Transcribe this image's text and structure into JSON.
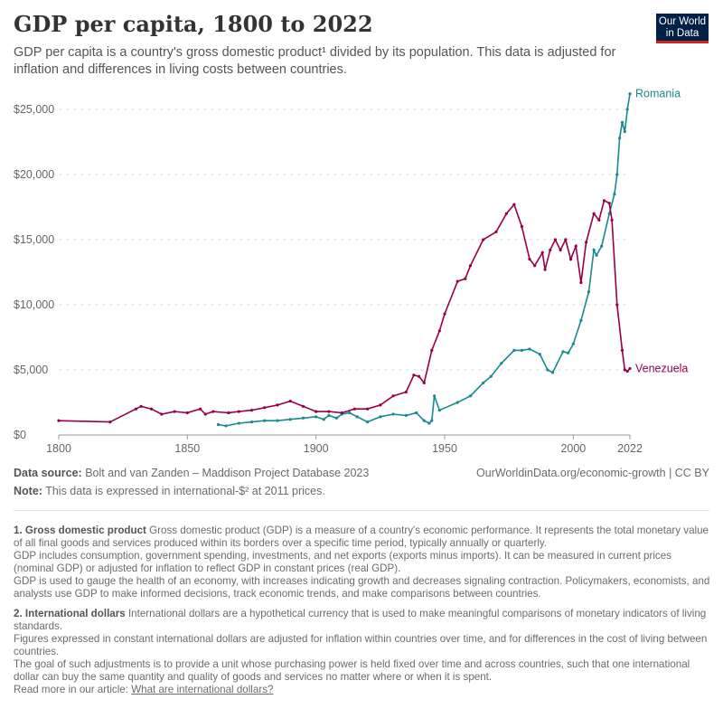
{
  "header": {
    "title": "GDP per capita, 1800 to 2022",
    "subtitle": "GDP per capita is a country's gross domestic product¹ divided by its population. This data is adjusted for inflation and differences in living costs between countries.",
    "logo": "Our World in Data"
  },
  "chart_data": {
    "type": "line",
    "title": "GDP per capita, 1800 to 2022",
    "xlabel": "",
    "ylabel": "",
    "xlim": [
      1800,
      2022
    ],
    "ylim": [
      0,
      25000
    ],
    "xticks": [
      "1800",
      "1850",
      "1900",
      "1950",
      "2000",
      "2022"
    ],
    "yticks": [
      "$0",
      "$5,000",
      "$10,000",
      "$15,000",
      "$20,000",
      "$25,000"
    ],
    "legend": "inline-right",
    "grid": "horizontal-dashed",
    "series": [
      {
        "name": "Romania",
        "color": "#18898f",
        "points": [
          [
            1862,
            800
          ],
          [
            1865,
            700
          ],
          [
            1870,
            900
          ],
          [
            1875,
            1000
          ],
          [
            1880,
            1100
          ],
          [
            1885,
            1100
          ],
          [
            1890,
            1200
          ],
          [
            1895,
            1300
          ],
          [
            1900,
            1400
          ],
          [
            1903,
            1200
          ],
          [
            1905,
            1500
          ],
          [
            1908,
            1300
          ],
          [
            1910,
            1600
          ],
          [
            1913,
            1700
          ],
          [
            1916,
            1400
          ],
          [
            1920,
            1000
          ],
          [
            1925,
            1400
          ],
          [
            1930,
            1600
          ],
          [
            1935,
            1500
          ],
          [
            1939,
            1700
          ],
          [
            1942,
            1100
          ],
          [
            1944,
            900
          ],
          [
            1945,
            1100
          ],
          [
            1946,
            3000
          ],
          [
            1948,
            1900
          ],
          [
            1955,
            2500
          ],
          [
            1960,
            3000
          ],
          [
            1965,
            4000
          ],
          [
            1968,
            4500
          ],
          [
            1972,
            5500
          ],
          [
            1977,
            6500
          ],
          [
            1980,
            6500
          ],
          [
            1983,
            6600
          ],
          [
            1987,
            6200
          ],
          [
            1990,
            5000
          ],
          [
            1992,
            4800
          ],
          [
            1996,
            6400
          ],
          [
            1998,
            6300
          ],
          [
            2000,
            7000
          ],
          [
            2003,
            8800
          ],
          [
            2006,
            11000
          ],
          [
            2008,
            14200
          ],
          [
            2009,
            13800
          ],
          [
            2011,
            14500
          ],
          [
            2014,
            17000
          ],
          [
            2016,
            18500
          ],
          [
            2017,
            20000
          ],
          [
            2018,
            22800
          ],
          [
            2019,
            24000
          ],
          [
            2020,
            23300
          ],
          [
            2021,
            25000
          ],
          [
            2022,
            26200
          ]
        ]
      },
      {
        "name": "Venezuela",
        "color": "#970046",
        "points": [
          [
            1800,
            1100
          ],
          [
            1820,
            1000
          ],
          [
            1830,
            2000
          ],
          [
            1832,
            2200
          ],
          [
            1836,
            2000
          ],
          [
            1840,
            1600
          ],
          [
            1845,
            1800
          ],
          [
            1850,
            1700
          ],
          [
            1855,
            2000
          ],
          [
            1857,
            1600
          ],
          [
            1860,
            1800
          ],
          [
            1866,
            1700
          ],
          [
            1870,
            1800
          ],
          [
            1875,
            1900
          ],
          [
            1880,
            2100
          ],
          [
            1885,
            2300
          ],
          [
            1890,
            2600
          ],
          [
            1895,
            2200
          ],
          [
            1900,
            1800
          ],
          [
            1905,
            1800
          ],
          [
            1910,
            1700
          ],
          [
            1915,
            2000
          ],
          [
            1920,
            2000
          ],
          [
            1925,
            2300
          ],
          [
            1930,
            3000
          ],
          [
            1935,
            3300
          ],
          [
            1938,
            4600
          ],
          [
            1940,
            4500
          ],
          [
            1942,
            4000
          ],
          [
            1945,
            6500
          ],
          [
            1948,
            8000
          ],
          [
            1950,
            9300
          ],
          [
            1955,
            11800
          ],
          [
            1958,
            12000
          ],
          [
            1960,
            13000
          ],
          [
            1965,
            15000
          ],
          [
            1970,
            15600
          ],
          [
            1974,
            17000
          ],
          [
            1977,
            17700
          ],
          [
            1980,
            16000
          ],
          [
            1983,
            13500
          ],
          [
            1985,
            13000
          ],
          [
            1988,
            14000
          ],
          [
            1989,
            12700
          ],
          [
            1991,
            14200
          ],
          [
            1993,
            15000
          ],
          [
            1995,
            14200
          ],
          [
            1997,
            15000
          ],
          [
            1999,
            13500
          ],
          [
            2001,
            14500
          ],
          [
            2003,
            11700
          ],
          [
            2005,
            14800
          ],
          [
            2008,
            17000
          ],
          [
            2010,
            16500
          ],
          [
            2012,
            18000
          ],
          [
            2014,
            17800
          ],
          [
            2015,
            16500
          ],
          [
            2017,
            10000
          ],
          [
            2019,
            6500
          ],
          [
            2020,
            5000
          ],
          [
            2021,
            4900
          ],
          [
            2022,
            5100
          ]
        ]
      }
    ]
  },
  "footer": {
    "source_label": "Data source:",
    "source": "Bolt and van Zanden – Maddison Project Database 2023",
    "url": "OurWorldinData.org/economic-growth | CC BY",
    "note_label": "Note:",
    "note": "This data is expressed in international-$² at 2011 prices."
  },
  "notes": {
    "n1_label": "1. Gross domestic product",
    "n1_text": "Gross domestic product (GDP) is a measure of a country's economic performance. It represents the total monetary value of all final goods and services produced within its borders over a specific time period, typically annually or quarterly.",
    "n1_p2": "GDP includes consumption, government spending, investments, and net exports (exports minus imports). It can be measured in current prices (nominal GDP) or adjusted for inflation to reflect GDP in constant prices (real GDP).",
    "n1_p3": "GDP is used to gauge the health of an economy, with increases indicating growth and decreases signaling contraction. Policymakers, economists, and analysts use GDP to make informed decisions, track economic trends, and make comparisons between countries.",
    "n2_label": "2. International dollars",
    "n2_text": "International dollars are a hypothetical currency that is used to make meaningful comparisons of monetary indicators of living standards.",
    "n2_p2": "Figures expressed in constant international dollars are adjusted for inflation within countries over time, and for differences in the cost of living between countries.",
    "n2_p3": "The goal of such adjustments is to provide a unit whose purchasing power is held fixed over time and across countries, such that one international dollar can buy the same quantity and quality of goods and services no matter where or when it is spent.",
    "read_more": "Read more in our article:",
    "link": "What are international dollars?"
  }
}
